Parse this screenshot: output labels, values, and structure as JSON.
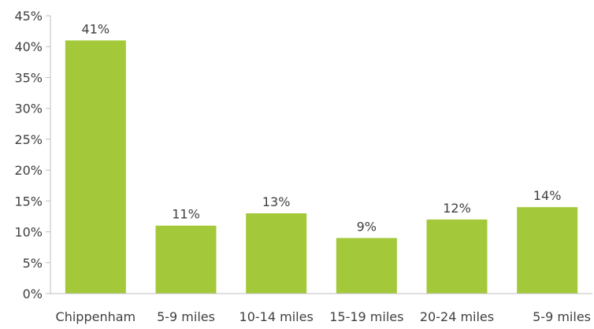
{
  "chart_data": {
    "type": "bar",
    "categories": [
      "Chippenham",
      "5-9 miles",
      "10-14 miles",
      "15-19 miles",
      "20-24 miles",
      "5-9 miles"
    ],
    "values": [
      41,
      11,
      13,
      9,
      12,
      14
    ],
    "data_labels": [
      "41%",
      "11%",
      "13%",
      "9%",
      "12%",
      "14%"
    ],
    "y_ticks": [
      0,
      5,
      10,
      15,
      20,
      25,
      30,
      35,
      40,
      45
    ],
    "y_tick_labels": [
      "0%",
      "5%",
      "10%",
      "15%",
      "20%",
      "25%",
      "30%",
      "35%",
      "40%",
      "45%"
    ],
    "ylim": [
      0,
      45
    ],
    "grid": false,
    "legend": "none",
    "colors": {
      "bar": "#a3c93a",
      "axis": "#bfbfbf",
      "text": "#404040"
    }
  }
}
